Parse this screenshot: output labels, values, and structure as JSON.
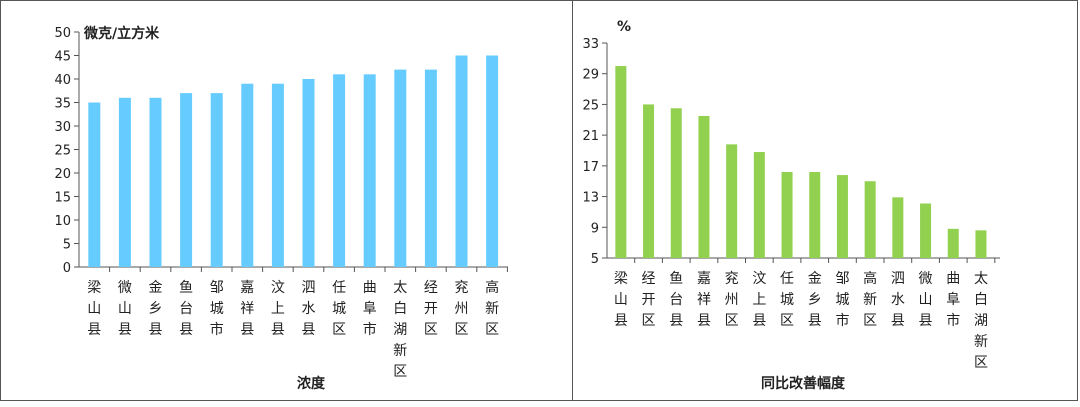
{
  "colors": {
    "left_bar": "#66ccff",
    "right_bar": "#92d050",
    "axis": "#555555",
    "border": "#555555"
  },
  "chart_data": [
    {
      "type": "bar",
      "title": "",
      "unit_label": "微克/立方米",
      "xlabel": "浓度",
      "ylabel": "",
      "ylim": [
        0,
        50
      ],
      "yticks": [
        0,
        5,
        10,
        15,
        20,
        25,
        30,
        35,
        40,
        45,
        50
      ],
      "grid": false,
      "categories": [
        "梁山县",
        "微山县",
        "金乡县",
        "鱼台县",
        "邹城市",
        "嘉祥县",
        "汶上县",
        "泗水县",
        "任城区",
        "曲阜市",
        "太白湖新区",
        "经开区",
        "兖州区",
        "高新区"
      ],
      "values": [
        35,
        36,
        36,
        37,
        37,
        39,
        39,
        40,
        41,
        41,
        42,
        42,
        45,
        45
      ]
    },
    {
      "type": "bar",
      "title": "",
      "unit_label": "%",
      "xlabel": "同比改善幅度",
      "ylabel": "",
      "ylim": [
        5,
        33
      ],
      "yticks": [
        5,
        9,
        13,
        17,
        21,
        25,
        29,
        33
      ],
      "grid": false,
      "categories": [
        "梁山县",
        "经开区",
        "鱼台县",
        "嘉祥县",
        "兖州区",
        "汶上县",
        "任城区",
        "金乡县",
        "邹城市",
        "高新区",
        "泗水县",
        "微山县",
        "曲阜市",
        "太白湖新区"
      ],
      "values": [
        30.0,
        25.0,
        24.5,
        23.5,
        19.8,
        18.8,
        16.2,
        16.2,
        15.8,
        15.0,
        12.9,
        12.1,
        8.8,
        8.6
      ]
    }
  ]
}
